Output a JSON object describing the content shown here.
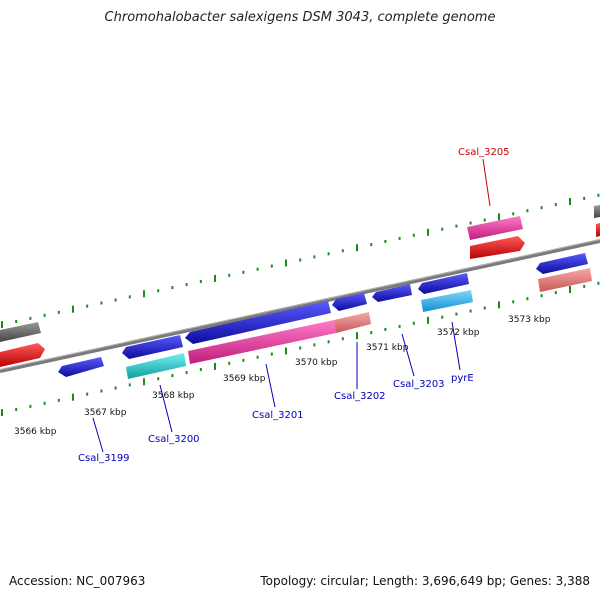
{
  "title": "Chromohalobacter salexigens DSM 3043, complete genome",
  "footer": {
    "accession": "Accession: NC_007963",
    "summary": "Topology: circular; Length: 3,696,649 bp; Genes: 3,388"
  },
  "colors": {
    "backbone": "#7a7a7a",
    "tick": "#1a8a1a",
    "label_blue": "#0000bb",
    "label_red": "#cc0000",
    "gene_blue": "#1c1cd6",
    "gene_cyan": "#22c8cc",
    "gene_lightblue": "#2ab8f0",
    "gene_magenta": "#e6339a",
    "gene_salmon": "#e07a7a",
    "gene_red": "#e61010",
    "gene_gray": "#6b6b6b"
  },
  "kbp_labels": [
    "3566 kbp",
    "3567 kbp",
    "3568 kbp",
    "3569 kbp",
    "3570 kbp",
    "3571 kbp",
    "3572 kbp",
    "3573 kbp"
  ],
  "gene_labels": [
    {
      "name": "Csal_3199",
      "color": "blue"
    },
    {
      "name": "Csal_3200",
      "color": "blue"
    },
    {
      "name": "Csal_3201",
      "color": "blue"
    },
    {
      "name": "Csal_3202",
      "color": "blue"
    },
    {
      "name": "Csal_3203",
      "color": "blue"
    },
    {
      "name": "pyrE",
      "color": "blue"
    },
    {
      "name": "Csal_3205",
      "color": "red"
    }
  ]
}
